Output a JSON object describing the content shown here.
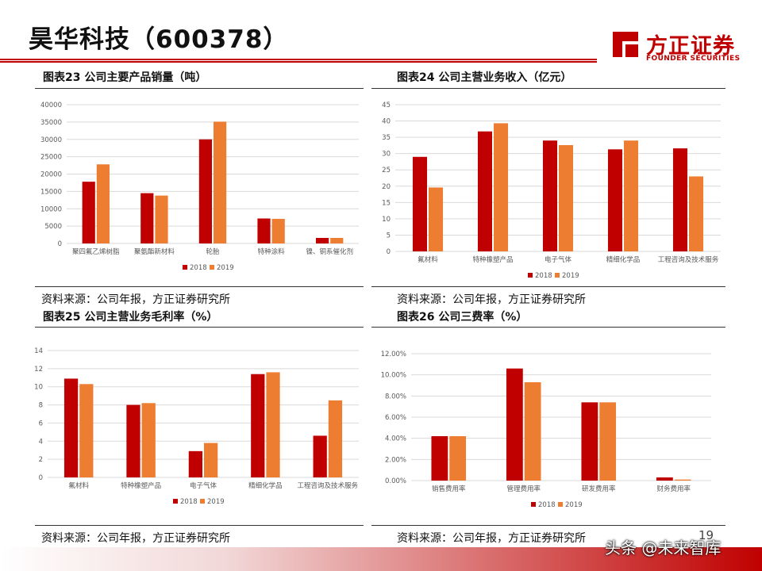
{
  "header": {
    "title": "昊华科技（600378）",
    "logo_cn": "方正证券",
    "logo_en": "FOUNDER SECURITIES",
    "logo_color": "#c00000"
  },
  "colors": {
    "series_2018": "#c00000",
    "series_2019": "#ed7d31",
    "axis": "#d9d9d9",
    "tick_text": "#595959"
  },
  "figures": [
    {
      "title": "图表23 公司主要产品销量（吨）",
      "source": "资料来源：公司年报，方正证券研究所",
      "chart_data": {
        "type": "bar",
        "categories": [
          "聚四氟乙烯树脂",
          "聚氨酯新材料",
          "轮胎",
          "特种涂料",
          "镍、铜系催化剂"
        ],
        "series": [
          {
            "name": "2018",
            "values": [
              17800,
              14500,
              30000,
              7200,
              1600
            ]
          },
          {
            "name": "2019",
            "values": [
              22800,
              13800,
              35100,
              7100,
              1600
            ]
          }
        ],
        "ylim": [
          0,
          40000
        ],
        "yticks": [
          "0",
          "5000",
          "10000",
          "15000",
          "20000",
          "25000",
          "30000",
          "35000",
          "40000"
        ],
        "legend": "bottom"
      }
    },
    {
      "title": "图表24 公司主营业务收入（亿元）",
      "source": "资料来源：公司年报，方正证券研究所",
      "chart_data": {
        "type": "bar",
        "categories": [
          "氟材料",
          "特种橡塑产品",
          "电子气体",
          "精细化学品",
          "工程咨询及技术服务"
        ],
        "series": [
          {
            "name": "2018",
            "values": [
              29,
              36.8,
              34,
              31.3,
              31.6
            ]
          },
          {
            "name": "2019",
            "values": [
              19.6,
              39.3,
              32.6,
              34,
              23
            ]
          }
        ],
        "ylim": [
          0,
          45
        ],
        "yticks": [
          "0",
          "5",
          "10",
          "15",
          "20",
          "25",
          "30",
          "35",
          "40",
          "45"
        ],
        "legend": "bottom"
      }
    },
    {
      "title": "图表25 公司主营业务毛利率（%）",
      "source": "资料来源：公司年报，方正证券研究所",
      "chart_data": {
        "type": "bar",
        "categories": [
          "氟材料",
          "特种橡塑产品",
          "电子气体",
          "精细化学品",
          "工程咨询及技术服务"
        ],
        "series": [
          {
            "name": "2018",
            "values": [
              10.9,
              8,
              2.9,
              11.4,
              4.6
            ]
          },
          {
            "name": "2019",
            "values": [
              10.3,
              8.2,
              3.8,
              11.6,
              8.5
            ]
          }
        ],
        "ylim": [
          0,
          14
        ],
        "yticks": [
          "0",
          "2",
          "4",
          "6",
          "8",
          "10",
          "12",
          "14"
        ],
        "legend": "bottom"
      }
    },
    {
      "title": "图表26 公司三费率（%）",
      "source": "资料来源：公司年报，方正证券研究所",
      "chart_data": {
        "type": "bar",
        "categories": [
          "销售费用率",
          "管理费用率",
          "研发费用率",
          "财务费用率"
        ],
        "series": [
          {
            "name": "2018",
            "values": [
              4.2,
              10.6,
              7.4,
              0.3
            ]
          },
          {
            "name": "2019",
            "values": [
              4.2,
              9.3,
              7.4,
              0.1
            ]
          }
        ],
        "ylim": [
          0,
          12
        ],
        "yticks": [
          "0.00%",
          "2.00%",
          "4.00%",
          "6.00%",
          "8.00%",
          "10.00%",
          "12.00%"
        ],
        "legend": "bottom"
      }
    }
  ],
  "footer": {
    "watermark": "头条 @未来智库",
    "page_number": "19"
  }
}
